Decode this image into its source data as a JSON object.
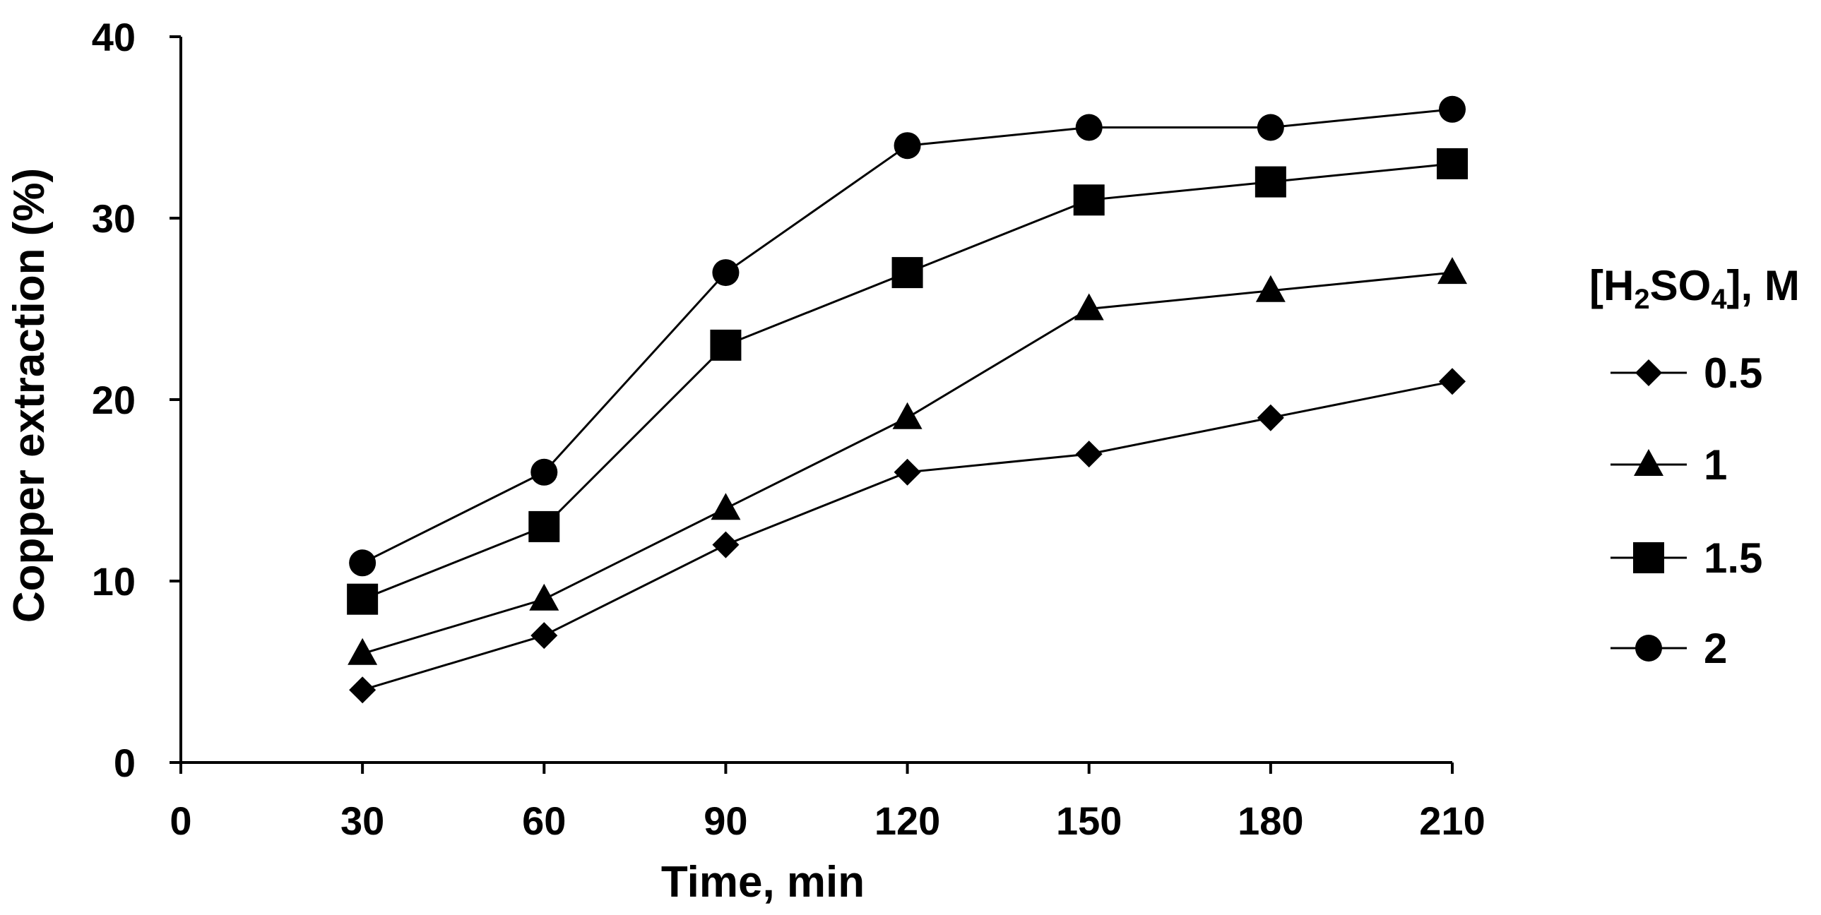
{
  "chart_data": {
    "type": "line",
    "title": "",
    "xlabel": "Time, min",
    "ylabel": "Copper extraction (%)",
    "xlim": [
      0,
      210
    ],
    "ylim": [
      0,
      40
    ],
    "x_ticks": [
      "0",
      "30",
      "60",
      "90",
      "120",
      "150",
      "180",
      "210"
    ],
    "y_ticks": [
      "0",
      "10",
      "20",
      "30",
      "40"
    ],
    "x": [
      30,
      60,
      90,
      120,
      150,
      180,
      210
    ],
    "legend_title": {
      "prefix": "[H",
      "sub1": "2",
      "mid": "SO",
      "sub2": "4",
      "suffix": "], M"
    },
    "legend_position": "right",
    "grid": false,
    "series": [
      {
        "name": "0.5",
        "marker": "diamond",
        "values": [
          4,
          7,
          12,
          16,
          17,
          19,
          21
        ]
      },
      {
        "name": "1",
        "marker": "triangle",
        "values": [
          6,
          9,
          14,
          19,
          25,
          26,
          27
        ]
      },
      {
        "name": "1.5",
        "marker": "square",
        "values": [
          9,
          13,
          23,
          27,
          31,
          32,
          33
        ]
      },
      {
        "name": "2",
        "marker": "circle",
        "values": [
          11,
          16,
          27,
          34,
          35,
          35,
          36
        ]
      }
    ],
    "colors": {
      "line": "#000000",
      "marker": "#000000",
      "background": "#ffffff"
    }
  }
}
